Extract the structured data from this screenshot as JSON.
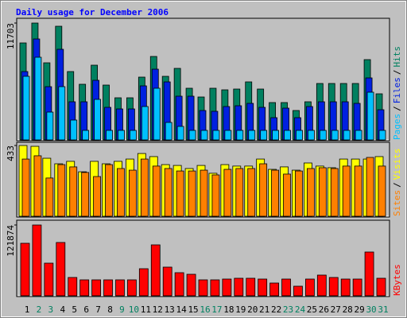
{
  "chart_data": [
    {
      "type": "bar",
      "title": "Daily usage for December 2006",
      "title_color": "#0000FF",
      "legend_separator": "/",
      "ylim": [
        0,
        11703
      ],
      "yticks": [
        11703
      ],
      "series": [
        {
          "name": "Hits",
          "color": "#008060",
          "values": [
            9713,
            11703,
            7722,
            11384,
            6847,
            5573,
            7484,
            5493,
            4219,
            4219,
            6289,
            8359,
            6369,
            7165,
            5175,
            4299,
            5175,
            5016,
            5095,
            5812,
            5095,
            3742,
            3742,
            2946,
            3821,
            5652,
            5652,
            5652,
            5652,
            8041,
            4618
          ]
        },
        {
          "name": "Files",
          "color": "#0020E0",
          "values": [
            6847,
            10111,
            5334,
            9076,
            3821,
            3821,
            5971,
            3264,
            3105,
            3105,
            5414,
            7085,
            5812,
            4379,
            4379,
            2946,
            2866,
            3344,
            3423,
            3662,
            3264,
            2229,
            3184,
            2229,
            3344,
            3821,
            3821,
            3821,
            3662,
            6210,
            3025
          ]
        },
        {
          "name": "Pages",
          "color": "#00C0FF",
          "values": [
            6369,
            8279,
            2786,
            5334,
            1990,
            955,
            4060,
            955,
            955,
            955,
            3344,
            5175,
            1751,
            1353,
            955,
            955,
            955,
            955,
            955,
            955,
            955,
            955,
            955,
            955,
            955,
            955,
            955,
            955,
            955,
            4777,
            955
          ]
        }
      ]
    },
    {
      "type": "bar",
      "legend_separator": "/",
      "ylim": [
        0,
        433
      ],
      "yticks": [
        433
      ],
      "series": [
        {
          "name": "Visits",
          "color": "#FFFF00",
          "values": [
            433,
            428,
            355,
            321,
            336,
            272,
            336,
            321,
            336,
            350,
            384,
            365,
            316,
            311,
            292,
            311,
            263,
            316,
            307,
            307,
            350,
            287,
            302,
            282,
            326,
            307,
            297,
            350,
            350,
            350,
            365
          ]
        },
        {
          "name": "Sites",
          "color": "#FF8000",
          "values": [
            350,
            370,
            234,
            316,
            302,
            268,
            243,
            316,
            292,
            282,
            350,
            307,
            292,
            277,
            277,
            282,
            253,
            287,
            292,
            292,
            321,
            282,
            258,
            277,
            292,
            297,
            292,
            307,
            307,
            360,
            307
          ]
        }
      ]
    },
    {
      "type": "bar",
      "ylim": [
        0,
        121874
      ],
      "yticks": [
        121874
      ],
      "series": [
        {
          "name": "KBytes",
          "color": "#FF0000",
          "values": [
            90380,
            121874,
            56145,
            91750,
            31496,
            27388,
            27388,
            27388,
            27388,
            27388,
            46560,
            87642,
            49298,
            39713,
            36974,
            27388,
            27388,
            28757,
            30127,
            30127,
            28757,
            21910,
            28757,
            16433,
            28757,
            35604,
            31496,
            28757,
            28757,
            75317,
            30127
          ]
        }
      ],
      "categories": [
        "1",
        "2",
        "3",
        "4",
        "5",
        "6",
        "7",
        "8",
        "9",
        "10",
        "11",
        "12",
        "13",
        "14",
        "15",
        "16",
        "17",
        "18",
        "19",
        "20",
        "21",
        "22",
        "23",
        "24",
        "25",
        "26",
        "27",
        "28",
        "29",
        "30",
        "31"
      ],
      "category_colors": [
        "#000000",
        "#008060",
        "#008060",
        "#000000",
        "#000000",
        "#000000",
        "#000000",
        "#000000",
        "#008060",
        "#008060",
        "#000000",
        "#000000",
        "#000000",
        "#000000",
        "#000000",
        "#008060",
        "#008060",
        "#000000",
        "#000000",
        "#000000",
        "#000000",
        "#000000",
        "#008060",
        "#008060",
        "#000000",
        "#000000",
        "#000000",
        "#000000",
        "#000000",
        "#008060",
        "#008060"
      ]
    }
  ]
}
